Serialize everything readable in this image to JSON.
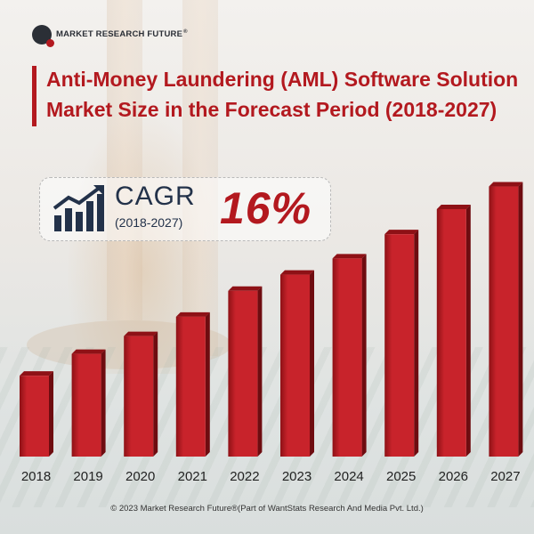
{
  "brand": {
    "name": "MARKET RESEARCH FUTURE",
    "reg_mark": "®"
  },
  "title": {
    "line1": "Anti-Money Laundering (AML) Software Solution",
    "line2": "Market Size in the Forecast Period (2018-2027)"
  },
  "cagr": {
    "label": "CAGR",
    "period": "(2018-2027)",
    "value": "16%"
  },
  "colors": {
    "accent": "#b3191f",
    "bar": "#c8232b",
    "bar_dark": "#8e1116",
    "text_dark": "#23324a"
  },
  "chart_data": {
    "type": "bar",
    "title": "Anti-Money Laundering (AML) Software Solution Market Size in the Forecast Period (2018-2027)",
    "xlabel": "",
    "ylabel": "",
    "categories": [
      "2018",
      "2019",
      "2020",
      "2021",
      "2022",
      "2023",
      "2024",
      "2025",
      "2026",
      "2027"
    ],
    "values": [
      1.0,
      1.27,
      1.49,
      1.73,
      2.05,
      2.25,
      2.45,
      2.75,
      3.06,
      3.34
    ],
    "ylim": [
      0,
      3.5
    ],
    "grid": false,
    "legend": "none"
  },
  "footer": "© 2023 Market Research Future®(Part of WantStats Research And Media Pvt. Ltd.)"
}
